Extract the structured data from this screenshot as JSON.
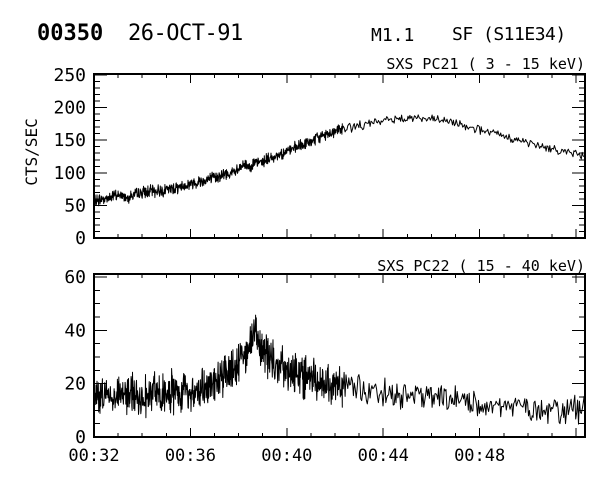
{
  "header": {
    "event_id": "00350",
    "date": "26-OCT-91",
    "goes_class": "M1.1",
    "flare_class": "SF (S11E34)"
  },
  "x_axis": {
    "lim": [
      32,
      52.37
    ],
    "major_ticks": [
      32,
      36,
      40,
      44,
      48,
      52
    ],
    "minor_step": 1,
    "labeled_ticks": [
      32,
      36,
      40,
      44,
      48
    ],
    "labels": [
      "00:32",
      "00:36",
      "00:40",
      "00:44",
      "00:48"
    ]
  },
  "chart_data": [
    {
      "type": "line",
      "title": "SXS PC21  (  3 - 15 keV)",
      "ylabel": "CTS/SEC",
      "xlabel": "",
      "ylim": [
        0,
        250
      ],
      "y_major_ticks": [
        0,
        50,
        100,
        150,
        200,
        250
      ],
      "y_minor_step": 10,
      "legend": "none",
      "grid": false,
      "keypoints": [
        [
          32,
          57
        ],
        [
          32.5,
          61
        ],
        [
          33,
          66
        ],
        [
          33.4,
          63
        ],
        [
          34,
          70
        ],
        [
          34.5,
          72
        ],
        [
          35,
          74
        ],
        [
          35.5,
          78
        ],
        [
          36,
          83
        ],
        [
          36.5,
          88
        ],
        [
          37,
          93
        ],
        [
          37.5,
          98
        ],
        [
          38,
          103
        ],
        [
          38.2,
          113
        ],
        [
          38.4,
          110
        ],
        [
          39,
          118
        ],
        [
          39.5,
          125
        ],
        [
          40,
          133
        ],
        [
          40.5,
          140
        ],
        [
          41,
          148
        ],
        [
          41.5,
          157
        ],
        [
          42,
          164
        ],
        [
          42.5,
          169
        ],
        [
          43,
          172
        ],
        [
          43.5,
          176
        ],
        [
          44,
          180
        ],
        [
          44.5,
          183
        ],
        [
          45,
          185
        ],
        [
          45.5,
          184
        ],
        [
          46,
          182
        ],
        [
          46.5,
          180
        ],
        [
          47,
          176
        ],
        [
          47.5,
          172
        ],
        [
          48,
          166
        ],
        [
          48.5,
          161
        ],
        [
          49,
          156
        ],
        [
          49.5,
          151
        ],
        [
          50,
          146
        ],
        [
          50.5,
          141
        ],
        [
          51,
          137
        ],
        [
          51.5,
          133
        ],
        [
          52,
          130
        ],
        [
          52.37,
          126
        ]
      ],
      "noise": {
        "dense_until": 42.3,
        "amp_dense": 11,
        "amp_sparse": 8,
        "samples_per_min_dense": 72,
        "samples_per_min_sparse": 26,
        "seed": 7
      }
    },
    {
      "type": "line",
      "title": "SXS PC22  ( 15 - 40 keV)",
      "ylabel": "",
      "xlabel": "",
      "ylim": [
        0,
        60
      ],
      "y_major_ticks": [
        0,
        20,
        40,
        60
      ],
      "y_minor_step": 5,
      "legend": "none",
      "grid": false,
      "keypoints": [
        [
          32,
          16
        ],
        [
          33,
          16
        ],
        [
          34,
          16
        ],
        [
          35,
          16.5
        ],
        [
          36,
          17
        ],
        [
          36.5,
          18
        ],
        [
          37,
          20
        ],
        [
          37.5,
          23
        ],
        [
          38,
          27
        ],
        [
          38.4,
          33
        ],
        [
          38.7,
          40
        ],
        [
          39,
          33
        ],
        [
          39.3,
          30
        ],
        [
          39.7,
          27
        ],
        [
          40,
          25
        ],
        [
          40.5,
          23
        ],
        [
          41,
          22
        ],
        [
          41.5,
          21
        ],
        [
          42,
          20
        ],
        [
          42.5,
          19
        ],
        [
          43,
          18.5
        ],
        [
          44,
          17
        ],
        [
          45,
          15.5
        ],
        [
          46,
          14.5
        ],
        [
          47,
          13.5
        ],
        [
          48,
          12.5
        ],
        [
          49,
          12
        ],
        [
          50,
          11
        ],
        [
          51,
          10.5
        ],
        [
          52,
          10
        ],
        [
          52.37,
          11
        ]
      ],
      "noise": {
        "dense_until": 42.3,
        "amp_dense": 9.5,
        "amp_sparse": 6,
        "samples_per_min_dense": 72,
        "samples_per_min_sparse": 26,
        "seed": 13
      }
    }
  ]
}
